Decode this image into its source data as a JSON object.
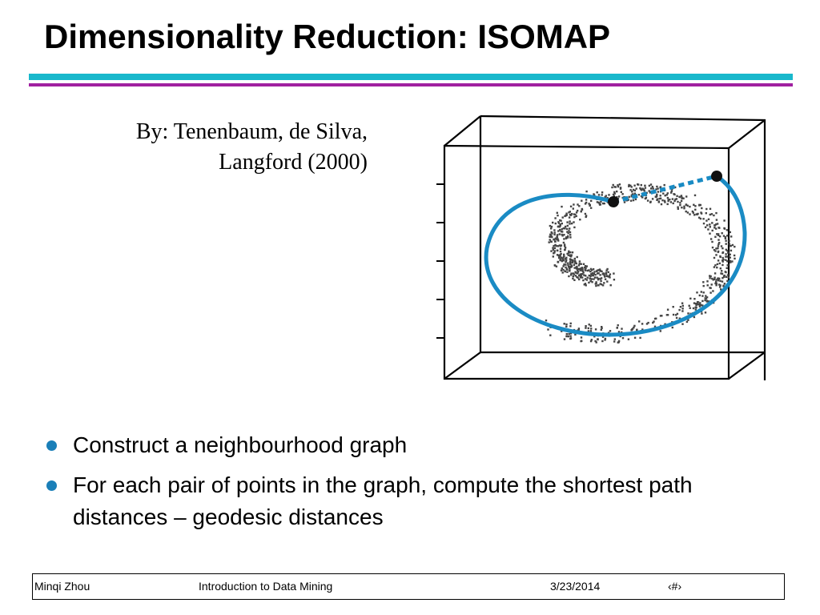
{
  "slide": {
    "title": "Dimensionality Reduction: ISOMAP",
    "citation_line1": "By: Tenenbaum, de Silva,",
    "citation_line2": "Langford (2000)"
  },
  "colors": {
    "rule_cyan": "#19b8cc",
    "rule_magenta": "#a020a0",
    "bullet": "#1a7fb8",
    "path_blue": "#1a8bc4",
    "points": "#444444"
  },
  "figure": {
    "description_icon": "swiss-roll-3d-scatter-icon"
  },
  "bullets": [
    {
      "text": "Construct a neighbourhood graph"
    },
    {
      "text": "For each pair of points in the graph, compute the shortest path distances – geodesic distances"
    }
  ],
  "footer": {
    "author": "Minqi Zhou",
    "course": "Introduction to Data Mining",
    "date": "3/23/2014",
    "page": "‹#›"
  }
}
